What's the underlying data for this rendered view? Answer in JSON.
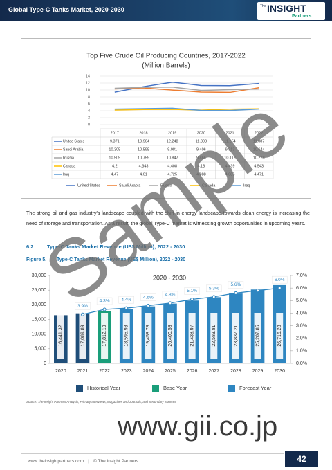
{
  "header": {
    "title": "Global Type-C Tanks Market, 2020-2030",
    "logo_small": "The",
    "logo_main": "INSIGHT",
    "logo_sub": "Partners"
  },
  "chart_data": [
    {
      "type": "line",
      "title": "Top Five Crude Oil Producing Countries, 2017-2022",
      "subtitle": "(Million Barrels)",
      "categories": [
        "2017",
        "2018",
        "2019",
        "2020",
        "2021",
        "2022"
      ],
      "series": [
        {
          "name": "United States",
          "color": "#4472c4",
          "values": [
            9.371,
            10.964,
            12.248,
            11.308,
            11.254,
            11.887
          ]
        },
        {
          "name": "Saudi Arabia",
          "color": "#ed7d31",
          "values": [
            10.305,
            10.598,
            9.981,
            9.406,
            9.313,
            10.644
          ]
        },
        {
          "name": "Russia",
          "color": "#a5a5a5",
          "values": [
            10.505,
            10.759,
            10.847,
            9.865,
            10.112,
            10.278
          ]
        },
        {
          "name": "Canada",
          "color": "#ffc000",
          "values": [
            4.2,
            4.343,
            4.408,
            4.18,
            4.439,
            4.543
          ]
        },
        {
          "name": "Iraq",
          "color": "#5b9bd5",
          "values": [
            4.47,
            4.61,
            4.725,
            4.088,
            4.085,
            4.471
          ]
        }
      ],
      "ylim": [
        0,
        14
      ],
      "yticks": [
        0,
        2,
        4,
        6,
        8,
        10,
        12,
        14
      ],
      "grid": true,
      "data_table": true,
      "legend": "bottom"
    },
    {
      "type": "bar",
      "title": "2020 - 2030",
      "categories": [
        "2020",
        "2021",
        "2022",
        "2023",
        "2024",
        "2025",
        "2026",
        "2027",
        "2028",
        "2029",
        "2030"
      ],
      "values": [
        16441.32,
        17089.89,
        17812.19,
        18595.93,
        19458.78,
        20400.58,
        21438.97,
        22583.81,
        23837.21,
        25207.85,
        26715.28
      ],
      "value_labels": [
        "16,441.32",
        "17,089.89",
        "17,812.19",
        "18,595.93",
        "19,458.78",
        "20,400.58",
        "21,438.97",
        "22,583.81",
        "23,837.21",
        "25,207.85",
        "26,715.28"
      ],
      "colors": [
        "#1f4e79",
        "#1f4e79",
        "#1a9e7a",
        "#2e86c1",
        "#2e86c1",
        "#2e86c1",
        "#2e86c1",
        "#2e86c1",
        "#2e86c1",
        "#2e86c1",
        "#2e86c1"
      ],
      "line": {
        "axis": "y2",
        "color": "#2e86c1",
        "values": [
          null,
          3.9,
          4.3,
          4.4,
          4.6,
          4.8,
          5.1,
          5.3,
          5.6,
          5.8,
          6.0
        ],
        "value_labels": [
          null,
          "3.9%",
          "4.3%",
          "4.4%",
          "4.6%",
          "4.8%",
          "5.1%",
          "5.3%",
          "5.6%",
          null,
          "6.0%"
        ]
      },
      "legend_items": [
        {
          "name": "Historical Year",
          "color": "#1f4e79"
        },
        {
          "name": "Base Year",
          "color": "#1a9e7a"
        },
        {
          "name": "Forecast Year",
          "color": "#2e86c1"
        }
      ],
      "ylim": [
        0,
        30000
      ],
      "yticks": [
        {
          "value": 0,
          "label": "0"
        },
        {
          "value": 5000,
          "label": "5,000"
        },
        {
          "value": 10000,
          "label": "10,000"
        },
        {
          "value": 15000,
          "label": "15,000"
        },
        {
          "value": 20000,
          "label": "20,000"
        },
        {
          "value": 25000,
          "label": "25,000"
        },
        {
          "value": 30000,
          "label": "30,000"
        }
      ],
      "y2lim": [
        0,
        7
      ],
      "y2ticks": [
        {
          "value": 0,
          "label": "0.0%"
        },
        {
          "value": 1,
          "label": "1.0%"
        },
        {
          "value": 2,
          "label": "2.0%"
        },
        {
          "value": 3,
          "label": "3.0%"
        },
        {
          "value": 4,
          "label": "4.0%"
        },
        {
          "value": 5,
          "label": "5.0%"
        },
        {
          "value": 6,
          "label": "6.0%"
        },
        {
          "value": 7,
          "label": "7.0%"
        }
      ],
      "grid": false,
      "legend": "bottom"
    }
  ],
  "body": {
    "paragraph": "The strong oil and gas industry's landscape coupled with the shift in energy landscape towards clean energy is increasing the need of storage and transportation. As a result, the global Type-C market is witnessing growth opportunities in upcoming years.",
    "section_number": "6.2",
    "section_title": "Type-C Tanks Market Revenue (US$ Million), 2022 - 2030",
    "figure_number": "Figure 5.",
    "figure_title": "Type-C Tanks Market Revenue (US$ Million), 2022 - 2030",
    "source": "Source: The Insight Partners Analysis, Primary Interviews, Magazines and Journals, and Secondary Sources"
  },
  "footer": {
    "website": "www.theinsightpartners.com",
    "separator": "|",
    "copyright": "© The Insight Partners",
    "page_number": "42"
  },
  "watermark": {
    "sample": "Sample",
    "site": "www.gii.co.jp"
  }
}
